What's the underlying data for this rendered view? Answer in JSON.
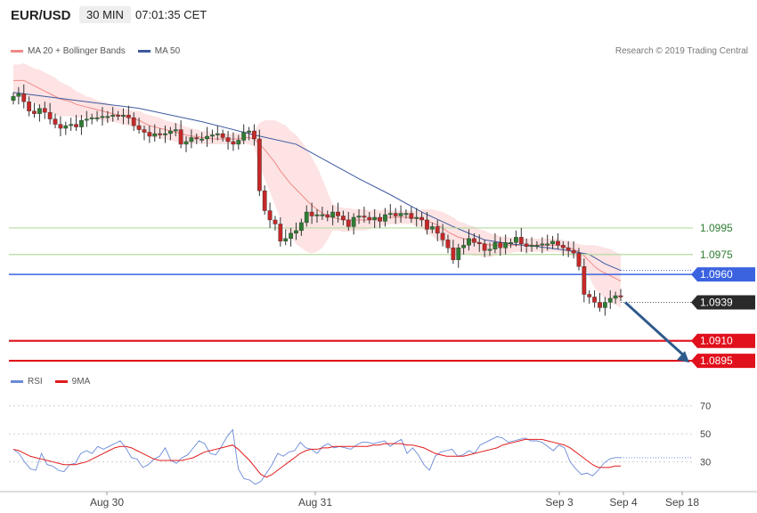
{
  "header": {
    "symbol": "EUR/USD",
    "timeframe": "30 MIN",
    "time": "07:01:35 CET"
  },
  "legend_top": {
    "items": [
      {
        "label": "MA 20 + Bollinger Bands",
        "color": "#f08a8a"
      },
      {
        "label": "MA 50",
        "color": "#3d5a9e"
      }
    ],
    "copyright": "Research © 2019 Trading Central"
  },
  "legend_bottom": {
    "items": [
      {
        "label": "RSI",
        "color": "#5b7fe0"
      },
      {
        "label": "9MA",
        "color": "#e11c1c"
      }
    ]
  },
  "colors": {
    "bull": "#2e7d32",
    "bear": "#c62828",
    "ma20": "#f08a8a",
    "band_fill": "#fde3e3",
    "ma50": "#3d5a9e",
    "green_level": "#b5dba0",
    "blue_level": "#3b63e0",
    "red_level": "#e0101c",
    "last_price": "#2a2a2a",
    "arrow": "#2f5a8c",
    "rsi": "#6a8ad8",
    "rsi_ma": "#e11c1c"
  },
  "chart_data": [
    {
      "type": "candlestick",
      "title": "EUR/USD 30 MIN",
      "x_labels": [
        "Aug 30",
        "Aug 31",
        "Sep 3",
        "Sep 4",
        "Sep 18"
      ],
      "levels": [
        {
          "value": 1.0995,
          "label": "1.0995",
          "style": "green"
        },
        {
          "value": 1.0975,
          "label": "1.0975",
          "style": "green"
        },
        {
          "value": 1.096,
          "label": "1.0960",
          "style": "blue"
        },
        {
          "value": 1.0939,
          "label": "1.0939",
          "style": "last_price"
        },
        {
          "value": 1.091,
          "label": "1.0910",
          "style": "red"
        },
        {
          "value": 1.0895,
          "label": "1.0895",
          "style": "red"
        }
      ],
      "ylim": [
        1.0885,
        1.1125
      ],
      "close_path": [
        1.1094,
        1.1096,
        1.109,
        1.1083,
        1.1081,
        1.1085,
        1.1082,
        1.1077,
        1.1073,
        1.107,
        1.1072,
        1.1073,
        1.1071,
        1.1076,
        1.1077,
        1.1078,
        1.1078,
        1.1079,
        1.1079,
        1.108,
        1.1079,
        1.108,
        1.1078,
        1.1072,
        1.1069,
        1.1067,
        1.1064,
        1.1066,
        1.1065,
        1.1066,
        1.1068,
        1.1069,
        1.1058,
        1.106,
        1.1063,
        1.1062,
        1.1062,
        1.1064,
        1.1065,
        1.1066,
        1.1063,
        1.106,
        1.1058,
        1.1061,
        1.1067,
        1.1068,
        1.1062,
        1.1023,
        1.1008,
        1.1001,
        1.0998,
        1.0985,
        1.0987,
        1.0991,
        1.0993,
        1.0999,
        1.1007,
        1.1004,
        1.1005,
        1.1005,
        1.1003,
        1.1007,
        1.1004,
        1.1001,
        1.0996,
        1.1003,
        1.1004,
        1.1003,
        1.1001,
        1.1003,
        1.1,
        1.1005,
        1.1006,
        1.1004,
        1.1006,
        1.1006,
        1.1002,
        1.1003,
        1.1001,
        1.0994,
        1.0996,
        1.0991,
        1.0986,
        1.098,
        1.0971,
        1.098,
        1.0982,
        1.0987,
        1.0984,
        1.0983,
        1.0978,
        1.0979,
        1.0984,
        1.098,
        1.0984,
        1.0984,
        1.0988,
        1.0983,
        1.0981,
        1.0982,
        1.0982,
        1.0983,
        1.0983,
        1.0985,
        1.0982,
        1.098,
        1.0978,
        1.0976,
        1.0966,
        1.0945,
        1.0943,
        1.0939,
        1.0935,
        1.0939,
        1.0942,
        1.0944,
        1.0943
      ],
      "ma20_path": [
        1.1106,
        1.1106,
        1.1106,
        1.1104,
        1.1102,
        1.11,
        1.1098,
        1.1096,
        1.1094,
        1.1092,
        1.1091,
        1.109,
        1.1088,
        1.1087,
        1.1086,
        1.1085,
        1.1084,
        1.1083,
        1.1082,
        1.1081,
        1.108,
        1.1079,
        1.1078,
        1.1077,
        1.1076,
        1.1074,
        1.1072,
        1.1071,
        1.107,
        1.1069,
        1.1068,
        1.1067,
        1.1066,
        1.1065,
        1.1064,
        1.1064,
        1.1063,
        1.1063,
        1.1062,
        1.1062,
        1.1062,
        1.1062,
        1.1062,
        1.1062,
        1.1063,
        1.1063,
        1.1062,
        1.1058,
        1.1054,
        1.1049,
        1.1044,
        1.1038,
        1.1033,
        1.1028,
        1.1024,
        1.102,
        1.1016,
        1.1012,
        1.1009,
        1.1006,
        1.1004,
        1.1003,
        1.1002,
        1.1001,
        1.1001,
        1.1001,
        1.1001,
        1.1001,
        1.1001,
        1.1002,
        1.1002,
        1.1003,
        1.1003,
        1.1003,
        1.1003,
        1.1003,
        1.1003,
        1.1002,
        1.1002,
        1.1,
        1.0999,
        1.0997,
        1.0995,
        1.0992,
        1.099,
        1.0988,
        1.0987,
        1.0986,
        1.0985,
        1.0984,
        1.0983,
        1.0982,
        1.0982,
        1.0982,
        1.0982,
        1.0982,
        1.0982,
        1.0982,
        1.0982,
        1.0982,
        1.0982,
        1.0982,
        1.0982,
        1.0982,
        1.0982,
        1.0981,
        1.098,
        1.0979,
        1.0977,
        1.0974,
        1.097,
        1.0966,
        1.0963,
        1.0961,
        1.0959,
        1.0957,
        1.0955
      ],
      "bollinger_width": [
        0.0012,
        0.0012,
        0.0013,
        0.0013,
        0.0013,
        0.0014,
        0.0014,
        0.0014,
        0.0014,
        0.0013,
        0.0012,
        0.0011,
        0.001,
        0.0009,
        0.0008,
        0.0008,
        0.0007,
        0.0007,
        0.0007,
        0.0006,
        0.0006,
        0.0006,
        0.0006,
        0.0006,
        0.0007,
        0.0007,
        0.0008,
        0.0008,
        0.0008,
        0.0007,
        0.0007,
        0.0007,
        0.0007,
        0.0006,
        0.0006,
        0.0005,
        0.0005,
        0.0005,
        0.0004,
        0.0004,
        0.0004,
        0.0004,
        0.0004,
        0.0004,
        0.0004,
        0.0005,
        0.0006,
        0.0016,
        0.0022,
        0.0027,
        0.0032,
        0.0036,
        0.0039,
        0.004,
        0.0041,
        0.004,
        0.0039,
        0.0036,
        0.0032,
        0.0026,
        0.0018,
        0.001,
        0.0009,
        0.0009,
        0.0009,
        0.0008,
        0.0008,
        0.0008,
        0.0007,
        0.0007,
        0.0006,
        0.0006,
        0.0005,
        0.0005,
        0.0005,
        0.0005,
        0.0005,
        0.0006,
        0.0007,
        0.0009,
        0.001,
        0.0011,
        0.0012,
        0.0013,
        0.0013,
        0.0012,
        0.0012,
        0.0011,
        0.0011,
        0.001,
        0.001,
        0.0009,
        0.0008,
        0.0007,
        0.0006,
        0.0006,
        0.0005,
        0.0005,
        0.0005,
        0.0005,
        0.0005,
        0.0005,
        0.0005,
        0.0005,
        0.0005,
        0.0005,
        0.0005,
        0.0005,
        0.0006,
        0.0008,
        0.0012,
        0.0016,
        0.0018,
        0.0019,
        0.002,
        0.002,
        0.002
      ],
      "ma50_path": [
        [
          1.1097,
          0
        ],
        [
          1.1091,
          12
        ],
        [
          1.1085,
          24
        ],
        [
          1.1075,
          36
        ],
        [
          1.1065,
          46
        ],
        [
          1.1058,
          54
        ],
        [
          1.1045,
          60
        ],
        [
          1.1032,
          66
        ],
        [
          1.102,
          72
        ],
        [
          1.1007,
          78
        ],
        [
          1.0996,
          84
        ],
        [
          1.0986,
          90
        ],
        [
          1.0983,
          95
        ],
        [
          1.0981,
          100
        ],
        [
          1.0978,
          106
        ],
        [
          1.0975,
          110
        ],
        [
          1.0968,
          113
        ],
        [
          1.0963,
          116
        ]
      ]
    },
    {
      "type": "line",
      "title": "RSI",
      "yticks": [
        30,
        50,
        70
      ],
      "ylim": [
        10,
        80
      ],
      "series": [
        {
          "name": "RSI",
          "values": [
            39,
            36,
            30,
            25,
            24,
            36,
            28,
            27,
            24,
            23,
            28,
            29,
            36,
            38,
            36,
            41,
            39,
            41,
            43,
            45,
            40,
            33,
            32,
            26,
            28,
            32,
            34,
            40,
            31,
            29,
            33,
            35,
            40,
            45,
            43,
            36,
            35,
            41,
            48,
            53,
            25,
            18,
            17,
            14,
            16,
            22,
            28,
            36,
            34,
            37,
            38,
            44,
            40,
            39,
            36,
            41,
            43,
            40,
            41,
            40,
            39,
            42,
            44,
            44,
            43,
            44,
            45,
            41,
            44,
            46,
            36,
            40,
            35,
            28,
            24,
            34,
            37,
            38,
            39,
            34,
            35,
            38,
            36,
            42,
            44,
            46,
            48,
            47,
            44,
            45,
            46,
            47,
            45,
            45,
            44,
            41,
            38,
            42,
            40,
            30,
            25,
            21,
            22,
            20,
            24,
            29,
            32,
            33,
            33
          ]
        },
        {
          "name": "9MA",
          "values": [
            39,
            38,
            36,
            34,
            33,
            32,
            31,
            30,
            29,
            28,
            28,
            28,
            29,
            30,
            32,
            34,
            36,
            38,
            40,
            41,
            41,
            40,
            38,
            36,
            34,
            32,
            31,
            31,
            31,
            31,
            31,
            32,
            33,
            35,
            37,
            38,
            39,
            40,
            41,
            42,
            39,
            35,
            31,
            26,
            21,
            19,
            21,
            24,
            27,
            30,
            33,
            36,
            38,
            39,
            39,
            40,
            40,
            41,
            41,
            41,
            41,
            41,
            41,
            41,
            42,
            42,
            43,
            43,
            43,
            43,
            42,
            42,
            41,
            40,
            38,
            36,
            35,
            34,
            34,
            34,
            34,
            35,
            36,
            37,
            38,
            39,
            40,
            42,
            43,
            44,
            45,
            46,
            46,
            46,
            46,
            45,
            44,
            43,
            42,
            40,
            37,
            34,
            31,
            28,
            26,
            26,
            26,
            27,
            27
          ]
        }
      ],
      "x_labels": [
        "Aug 30",
        "Aug 31",
        "Sep 3",
        "Sep 4",
        "Sep 18"
      ]
    }
  ]
}
